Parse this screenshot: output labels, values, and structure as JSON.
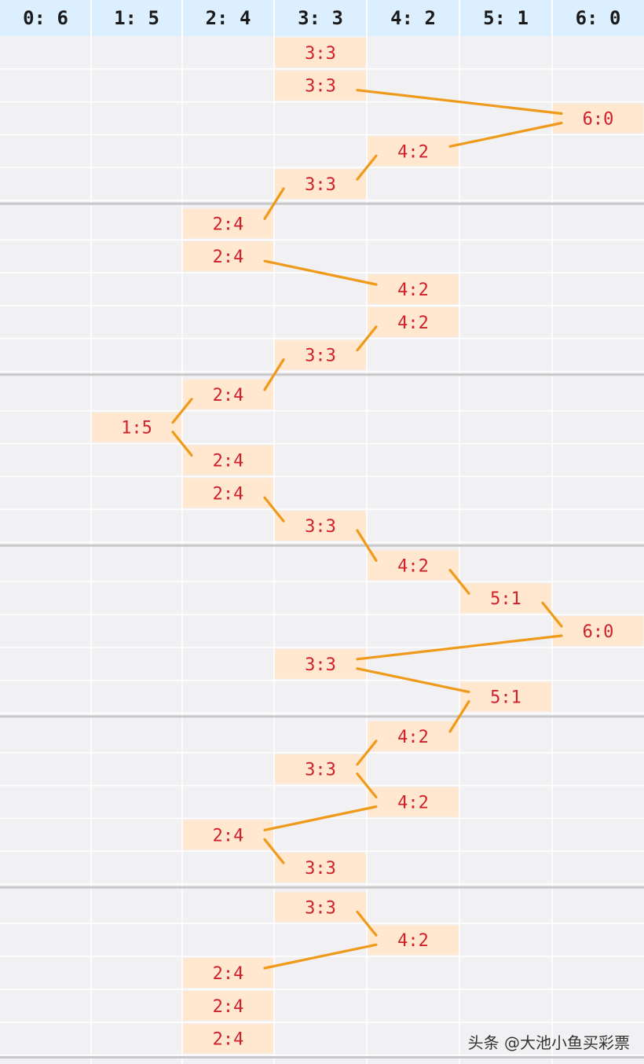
{
  "chart_data": {
    "type": "table",
    "columns": [
      "0: 6",
      "1: 5",
      "2: 4",
      "3: 3",
      "4: 2",
      "5: 1",
      "6: 0"
    ],
    "column_keys": [
      "0:6",
      "1:5",
      "2:4",
      "3:3",
      "4:2",
      "5:1",
      "6:0"
    ],
    "groups": [
      [
        "3:3",
        "3:3",
        "6:0",
        "4:2",
        "3:3"
      ],
      [
        "2:4",
        "2:4",
        "4:2",
        "4:2",
        "3:3"
      ],
      [
        "2:4",
        "1:5",
        "2:4",
        "2:4",
        "3:3"
      ],
      [
        "4:2",
        "5:1",
        "6:0",
        "3:3",
        "5:1"
      ],
      [
        "4:2",
        "3:3",
        "4:2",
        "2:4",
        "3:3"
      ],
      [
        "3:3",
        "4:2",
        "2:4",
        "2:4",
        "2:4"
      ]
    ],
    "colors": {
      "header_bg": "#dcefff",
      "grid_bg": "#f1f0f2",
      "cell_highlight": "#ffe8cf",
      "value_text": "#d0202a",
      "connector": "#ef9a1a",
      "group_separator": "#c9c9cc"
    }
  },
  "watermark": "头条 @大池小鱼买彩票"
}
